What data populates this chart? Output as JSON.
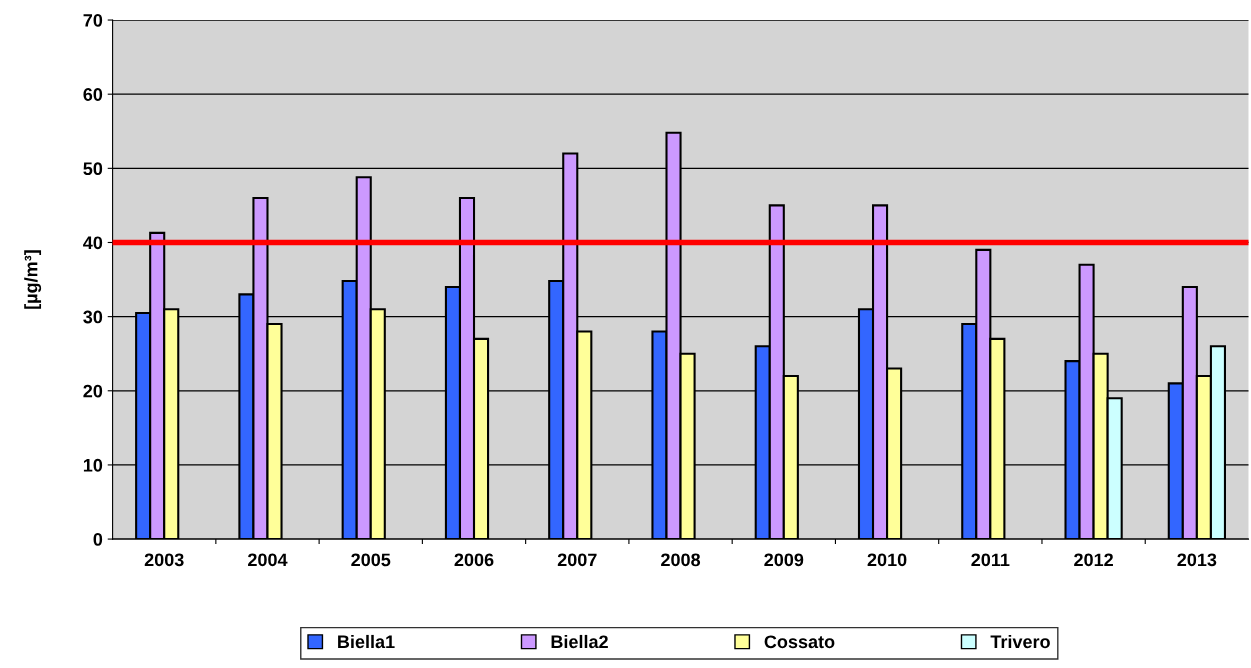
{
  "chart_data": {
    "type": "bar",
    "ylabel": "[µg/m³]",
    "categories": [
      "2003",
      "2004",
      "2005",
      "2006",
      "2007",
      "2008",
      "2009",
      "2010",
      "2011",
      "2012",
      "2013"
    ],
    "series": [
      {
        "name": "Biella1",
        "color": "#3366ff",
        "values": [
          30.5,
          33,
          34.8,
          34,
          34.8,
          28,
          26,
          31,
          29,
          24,
          21
        ]
      },
      {
        "name": "Biella2",
        "color": "#cc99ff",
        "values": [
          41.3,
          46,
          48.8,
          46,
          52,
          54.8,
          45,
          45,
          39,
          37,
          34
        ]
      },
      {
        "name": "Cossato",
        "color": "#ffff99",
        "values": [
          31,
          29,
          31,
          27,
          28,
          25,
          22,
          23,
          27,
          25,
          22
        ]
      },
      {
        "name": "Trivero",
        "color": "#ccffff",
        "values": [
          null,
          null,
          null,
          null,
          null,
          null,
          null,
          null,
          null,
          19,
          26
        ]
      }
    ],
    "ylim": [
      0,
      70
    ],
    "yticks": [
      0,
      10,
      20,
      30,
      40,
      50,
      60,
      70
    ],
    "grid": "y",
    "legend": "bottom",
    "ref_lines": [
      {
        "axis": "y",
        "value": 40,
        "color": "#ff0000",
        "line_style": "solid"
      }
    ]
  }
}
